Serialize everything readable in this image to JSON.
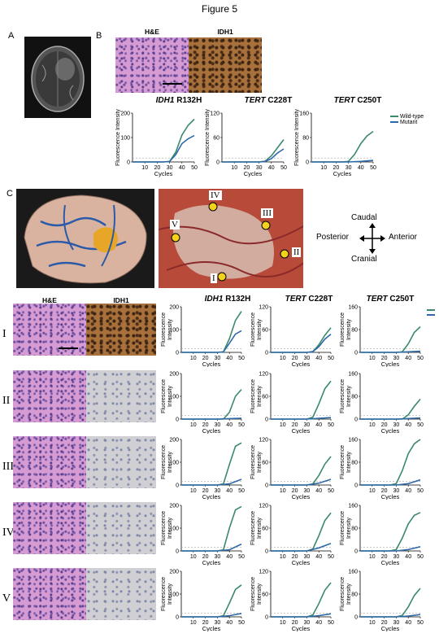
{
  "figure_title": "Figure 5",
  "panels": {
    "a": "A",
    "b": "B",
    "c": "C"
  },
  "panel_b": {
    "he_label": "H&E",
    "idh1_label": "IDH1",
    "legend": {
      "wildtype": "Wild-type",
      "mutant": "Mutant"
    }
  },
  "panel_c": {
    "region_labels": [
      "I",
      "II",
      "III",
      "IV",
      "V"
    ],
    "orientation": {
      "caudal": "Caudal",
      "cranial": "Cranial",
      "posterior": "Posterior",
      "anterior": "Anterior"
    }
  },
  "grid_headers": {
    "he": "H&E",
    "idh1": "IDH1"
  },
  "row_labels": [
    "I",
    "II",
    "III",
    "IV",
    "V"
  ],
  "assay_titles": [
    {
      "gene": "IDH1",
      "mutation": " R132H"
    },
    {
      "gene": "TERT",
      "mutation": " C228T"
    },
    {
      "gene": "TERT",
      "mutation": " C250T"
    }
  ],
  "axis": {
    "ylabel": "Fluorescence Intensity",
    "ylabel_line1": "Fluorescence",
    "ylabel_line2": "Intensity",
    "xlabel": "Cycles"
  },
  "colors": {
    "wildtype": "#3a8a6a",
    "mutant": "#2f6aa8",
    "threshold": "#aaaaaa"
  },
  "chart_data": [
    {
      "type": "line",
      "id": "B-IDH1",
      "ylim": [
        0,
        200
      ],
      "yticks": [
        0,
        100,
        200
      ],
      "xticks": [
        10,
        20,
        30,
        40,
        50
      ],
      "series": [
        {
          "name": "Wild-type",
          "x": [
            0,
            25,
            30,
            35,
            40,
            45,
            50
          ],
          "y": [
            0,
            0,
            2,
            40,
            110,
            150,
            175
          ]
        },
        {
          "name": "Mutant",
          "x": [
            0,
            25,
            30,
            35,
            40,
            45,
            50
          ],
          "y": [
            0,
            0,
            2,
            30,
            75,
            95,
            108
          ]
        }
      ]
    },
    {
      "type": "line",
      "id": "B-TERT228",
      "ylim": [
        0,
        120
      ],
      "yticks": [
        0,
        60,
        120
      ],
      "xticks": [
        10,
        20,
        30,
        40,
        50
      ],
      "series": [
        {
          "name": "Wild-type",
          "x": [
            0,
            30,
            35,
            40,
            45,
            50
          ],
          "y": [
            0,
            0,
            2,
            15,
            35,
            55
          ]
        },
        {
          "name": "Mutant",
          "x": [
            0,
            30,
            35,
            40,
            45,
            50
          ],
          "y": [
            0,
            0,
            1,
            8,
            22,
            32
          ]
        }
      ]
    },
    {
      "type": "line",
      "id": "B-TERT250",
      "ylim": [
        0,
        160
      ],
      "yticks": [
        0,
        80,
        160
      ],
      "xticks": [
        10,
        20,
        30,
        40,
        50
      ],
      "series": [
        {
          "name": "Wild-type",
          "x": [
            0,
            25,
            30,
            35,
            40,
            45,
            50
          ],
          "y": [
            0,
            0,
            2,
            25,
            60,
            85,
            100
          ]
        },
        {
          "name": "Mutant",
          "x": [
            0,
            30,
            40,
            50
          ],
          "y": [
            0,
            0,
            2,
            5
          ]
        }
      ]
    },
    {
      "type": "line",
      "id": "I-IDH1",
      "ylim": [
        0,
        200
      ],
      "yticks": [
        0,
        100,
        200
      ],
      "xticks": [
        10,
        20,
        30,
        40,
        50
      ],
      "series": [
        {
          "name": "Wild-type",
          "x": [
            0,
            30,
            35,
            40,
            45,
            50
          ],
          "y": [
            0,
            0,
            2,
            60,
            140,
            180
          ]
        },
        {
          "name": "Mutant",
          "x": [
            0,
            30,
            35,
            40,
            45,
            50
          ],
          "y": [
            0,
            0,
            2,
            40,
            80,
            95
          ]
        }
      ]
    },
    {
      "type": "line",
      "id": "I-TERT228",
      "ylim": [
        0,
        120
      ],
      "yticks": [
        0,
        60,
        120
      ],
      "xticks": [
        10,
        20,
        30,
        40,
        50
      ],
      "series": [
        {
          "name": "Wild-type",
          "x": [
            0,
            30,
            35,
            40,
            45,
            50
          ],
          "y": [
            0,
            0,
            2,
            20,
            45,
            65
          ]
        },
        {
          "name": "Mutant",
          "x": [
            0,
            30,
            35,
            40,
            45,
            50
          ],
          "y": [
            0,
            0,
            2,
            15,
            35,
            48
          ]
        }
      ]
    },
    {
      "type": "line",
      "id": "I-TERT250",
      "ylim": [
        0,
        160
      ],
      "yticks": [
        0,
        80,
        160
      ],
      "xticks": [
        10,
        20,
        30,
        40,
        50
      ],
      "series": [
        {
          "name": "Wild-type",
          "x": [
            0,
            30,
            35,
            40,
            45,
            50
          ],
          "y": [
            0,
            0,
            2,
            30,
            70,
            90
          ]
        },
        {
          "name": "Mutant",
          "x": [
            0,
            30,
            40,
            50
          ],
          "y": [
            0,
            0,
            2,
            4
          ]
        }
      ]
    },
    {
      "type": "line",
      "id": "II-IDH1",
      "ylim": [
        0,
        200
      ],
      "yticks": [
        0,
        100,
        200
      ],
      "xticks": [
        10,
        20,
        30,
        40,
        50
      ],
      "series": [
        {
          "name": "Wild-type",
          "x": [
            0,
            35,
            40,
            45,
            50
          ],
          "y": [
            0,
            0,
            30,
            100,
            130
          ]
        },
        {
          "name": "Mutant",
          "x": [
            0,
            30,
            40,
            50
          ],
          "y": [
            0,
            0,
            2,
            4
          ]
        }
      ]
    },
    {
      "type": "line",
      "id": "II-TERT228",
      "ylim": [
        0,
        120
      ],
      "yticks": [
        0,
        60,
        120
      ],
      "xticks": [
        10,
        20,
        30,
        40,
        50
      ],
      "series": [
        {
          "name": "Wild-type",
          "x": [
            0,
            30,
            35,
            40,
            45,
            50
          ],
          "y": [
            0,
            0,
            5,
            40,
            80,
            100
          ]
        },
        {
          "name": "Mutant",
          "x": [
            0,
            30,
            40,
            50
          ],
          "y": [
            0,
            0,
            2,
            4
          ]
        }
      ]
    },
    {
      "type": "line",
      "id": "II-TERT250",
      "ylim": [
        0,
        160
      ],
      "yticks": [
        0,
        80,
        160
      ],
      "xticks": [
        10,
        20,
        30,
        40,
        50
      ],
      "series": [
        {
          "name": "Wild-type",
          "x": [
            0,
            35,
            40,
            45,
            50
          ],
          "y": [
            0,
            0,
            15,
            45,
            70
          ]
        },
        {
          "name": "Mutant",
          "x": [
            0,
            30,
            40,
            50
          ],
          "y": [
            0,
            0,
            2,
            4
          ]
        }
      ]
    },
    {
      "type": "line",
      "id": "III-IDH1",
      "ylim": [
        0,
        200
      ],
      "yticks": [
        0,
        100,
        200
      ],
      "xticks": [
        10,
        20,
        30,
        40,
        50
      ],
      "series": [
        {
          "name": "Wild-type",
          "x": [
            0,
            30,
            35,
            40,
            45,
            50
          ],
          "y": [
            0,
            0,
            5,
            90,
            170,
            185
          ]
        },
        {
          "name": "Mutant",
          "x": [
            0,
            30,
            40,
            50
          ],
          "y": [
            0,
            0,
            5,
            25
          ]
        }
      ]
    },
    {
      "type": "line",
      "id": "III-TERT228",
      "ylim": [
        0,
        120
      ],
      "yticks": [
        0,
        60,
        120
      ],
      "xticks": [
        10,
        20,
        30,
        40,
        50
      ],
      "series": [
        {
          "name": "Wild-type",
          "x": [
            0,
            30,
            35,
            40,
            45,
            50
          ],
          "y": [
            0,
            0,
            3,
            25,
            55,
            75
          ]
        },
        {
          "name": "Mutant",
          "x": [
            0,
            30,
            40,
            50
          ],
          "y": [
            0,
            0,
            5,
            15
          ]
        }
      ]
    },
    {
      "type": "line",
      "id": "III-TERT250",
      "ylim": [
        0,
        160
      ],
      "yticks": [
        0,
        80,
        160
      ],
      "xticks": [
        10,
        20,
        30,
        40,
        50
      ],
      "series": [
        {
          "name": "Wild-type",
          "x": [
            0,
            25,
            30,
            35,
            40,
            45,
            50
          ],
          "y": [
            0,
            0,
            5,
            50,
            110,
            145,
            160
          ]
        },
        {
          "name": "Mutant",
          "x": [
            0,
            30,
            40,
            50
          ],
          "y": [
            0,
            0,
            5,
            18
          ]
        }
      ]
    },
    {
      "type": "line",
      "id": "IV-IDH1",
      "ylim": [
        0,
        200
      ],
      "yticks": [
        0,
        100,
        200
      ],
      "xticks": [
        10,
        20,
        30,
        40,
        50
      ],
      "series": [
        {
          "name": "Wild-type",
          "x": [
            0,
            30,
            35,
            40,
            45,
            50
          ],
          "y": [
            0,
            0,
            5,
            100,
            180,
            195
          ]
        },
        {
          "name": "Mutant",
          "x": [
            0,
            30,
            40,
            50
          ],
          "y": [
            0,
            0,
            5,
            30
          ]
        }
      ]
    },
    {
      "type": "line",
      "id": "IV-TERT228",
      "ylim": [
        0,
        120
      ],
      "yticks": [
        0,
        60,
        120
      ],
      "xticks": [
        10,
        20,
        30,
        40,
        50
      ],
      "series": [
        {
          "name": "Wild-type",
          "x": [
            0,
            30,
            35,
            40,
            45,
            50
          ],
          "y": [
            0,
            0,
            5,
            40,
            80,
            100
          ]
        },
        {
          "name": "Mutant",
          "x": [
            0,
            30,
            40,
            50
          ],
          "y": [
            0,
            0,
            8,
            20
          ]
        }
      ]
    },
    {
      "type": "line",
      "id": "IV-TERT250",
      "ylim": [
        0,
        160
      ],
      "yticks": [
        0,
        80,
        160
      ],
      "xticks": [
        10,
        20,
        30,
        40,
        50
      ],
      "series": [
        {
          "name": "Wild-type",
          "x": [
            0,
            25,
            30,
            35,
            40,
            45,
            50
          ],
          "y": [
            0,
            0,
            5,
            45,
            95,
            125,
            135
          ]
        },
        {
          "name": "Mutant",
          "x": [
            0,
            30,
            40,
            50
          ],
          "y": [
            0,
            0,
            5,
            15
          ]
        }
      ]
    },
    {
      "type": "line",
      "id": "V-IDH1",
      "ylim": [
        0,
        200
      ],
      "yticks": [
        0,
        100,
        200
      ],
      "xticks": [
        10,
        20,
        30,
        40,
        50
      ],
      "series": [
        {
          "name": "Wild-type",
          "x": [
            0,
            30,
            35,
            40,
            45,
            50
          ],
          "y": [
            0,
            0,
            5,
            60,
            120,
            140
          ]
        },
        {
          "name": "Mutant",
          "x": [
            0,
            30,
            40,
            50
          ],
          "y": [
            0,
            0,
            5,
            15
          ]
        }
      ]
    },
    {
      "type": "line",
      "id": "V-TERT228",
      "ylim": [
        0,
        120
      ],
      "yticks": [
        0,
        60,
        120
      ],
      "xticks": [
        10,
        20,
        30,
        40,
        50
      ],
      "series": [
        {
          "name": "Wild-type",
          "x": [
            0,
            30,
            35,
            40,
            45,
            50
          ],
          "y": [
            0,
            0,
            5,
            35,
            70,
            90
          ]
        },
        {
          "name": "Mutant",
          "x": [
            0,
            30,
            40,
            50
          ],
          "y": [
            0,
            0,
            3,
            8
          ]
        }
      ]
    },
    {
      "type": "line",
      "id": "V-TERT250",
      "ylim": [
        0,
        160
      ],
      "yticks": [
        0,
        80,
        160
      ],
      "xticks": [
        10,
        20,
        30,
        40,
        50
      ],
      "series": [
        {
          "name": "Wild-type",
          "x": [
            0,
            30,
            35,
            40,
            45,
            50
          ],
          "y": [
            0,
            0,
            5,
            35,
            75,
            100
          ]
        },
        {
          "name": "Mutant",
          "x": [
            0,
            30,
            40,
            50
          ],
          "y": [
            0,
            0,
            3,
            8
          ]
        }
      ]
    }
  ]
}
